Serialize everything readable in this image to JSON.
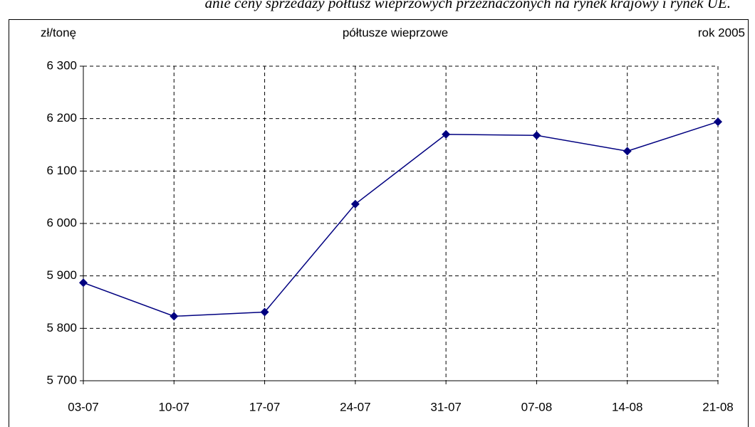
{
  "chart_data": {
    "type": "line",
    "title": "anie ceny sprzedaży półtusz wieprzowych przeznaczonych na rynek krajowy i rynek UE.",
    "subtitle": "półtusze wieprzowe",
    "y_label": "zł/tonę",
    "annotation": "rok 2005",
    "categories": [
      "03-07",
      "10-07",
      "17-07",
      "24-07",
      "31-07",
      "07-08",
      "14-08",
      "21-08"
    ],
    "series": [
      {
        "name": "półtusze wieprzowe",
        "color": "#000080",
        "values": [
          5887,
          5823,
          5831,
          6037,
          6170,
          6168,
          6138,
          6194
        ]
      }
    ],
    "ylim": [
      5700,
      6300
    ],
    "yticks": [
      {
        "value": 5700,
        "label": "5 700"
      },
      {
        "value": 5800,
        "label": "5 800"
      },
      {
        "value": 5900,
        "label": "5 900"
      },
      {
        "value": 6000,
        "label": "6 000"
      },
      {
        "value": 6100,
        "label": "6 100"
      },
      {
        "value": 6200,
        "label": "6 200"
      },
      {
        "value": 6300,
        "label": "6 300"
      }
    ],
    "grid": true
  }
}
